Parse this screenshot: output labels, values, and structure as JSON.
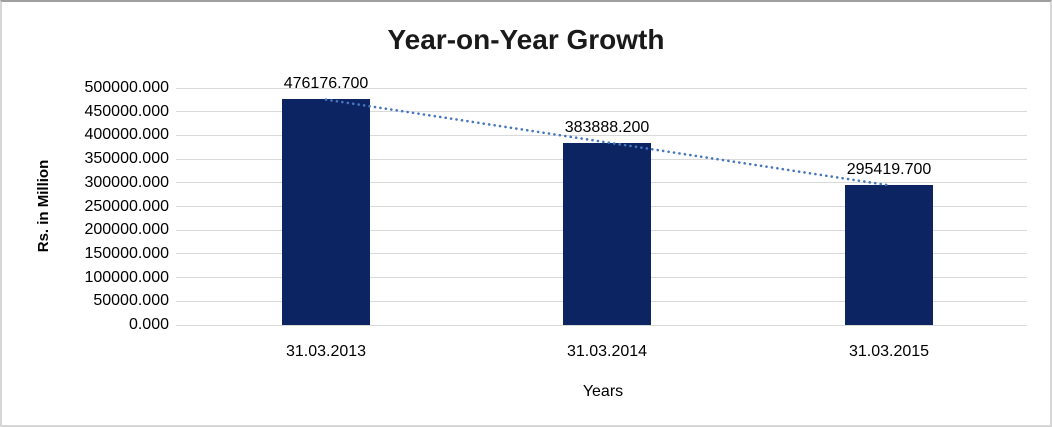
{
  "chart_data": {
    "type": "bar",
    "title": "Year-on-Year Growth",
    "xlabel": "Years",
    "ylabel": "Rs. in Million",
    "categories": [
      "31.03.2013",
      "31.03.2014",
      "31.03.2015"
    ],
    "values": [
      476176.7,
      383888.2,
      295419.7
    ],
    "value_labels": [
      "476176.700",
      "383888.200",
      "295419.700"
    ],
    "ylim": [
      0,
      500000
    ],
    "ytick_step": 50000,
    "ytick_labels": [
      "0.000",
      "50000.000",
      "100000.000",
      "150000.000",
      "200000.000",
      "250000.000",
      "300000.000",
      "350000.000",
      "400000.000",
      "450000.000",
      "500000.000"
    ],
    "grid": "horizontal",
    "legend": "none",
    "colors": {
      "bar": "#0d2463",
      "trendline": "#4876bd",
      "gridline": "#d9d9d9",
      "text": "#000000",
      "title_text": "#1a1a1a"
    },
    "trendline": {
      "type": "linear",
      "style": "dotted"
    }
  }
}
